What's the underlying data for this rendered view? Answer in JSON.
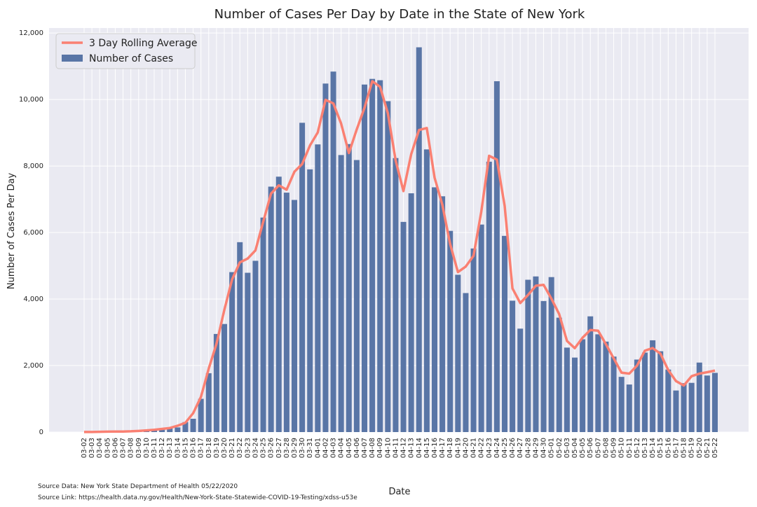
{
  "chart_data": {
    "type": "bar",
    "title": "Number of Cases Per Day by Date in the State of New York",
    "x_label": "Date",
    "y_label": "Number of Cases Per Day",
    "source_data": "Source Data: New York State Department of Health 05/22/2020",
    "source_link": "Source Link: https://health.data.ny.gov/Health/New-York-State-Statewide-COVID-19-Testing/xdss-u53e",
    "categories": [
      "03-02",
      "03-03",
      "03-04",
      "03-05",
      "03-06",
      "03-07",
      "03-08",
      "03-09",
      "03-10",
      "03-11",
      "03-12",
      "03-13",
      "03-14",
      "03-15",
      "03-16",
      "03-17",
      "03-18",
      "03-19",
      "03-20",
      "03-21",
      "03-22",
      "03-23",
      "03-24",
      "03-25",
      "03-26",
      "03-27",
      "03-28",
      "03-29",
      "03-30",
      "03-31",
      "04-01",
      "04-02",
      "04-03",
      "04-04",
      "04-05",
      "04-06",
      "04-07",
      "04-08",
      "04-09",
      "04-10",
      "04-11",
      "04-12",
      "04-13",
      "04-14",
      "04-15",
      "04-16",
      "04-17",
      "04-18",
      "04-19",
      "04-20",
      "04-21",
      "04-22",
      "04-23",
      "04-24",
      "04-25",
      "04-26",
      "04-27",
      "04-28",
      "04-29",
      "04-30",
      "05-01",
      "05-02",
      "05-03",
      "05-04",
      "05-05",
      "05-06",
      "05-07",
      "05-08",
      "05-09",
      "05-10",
      "05-11",
      "05-12",
      "05-13",
      "05-14",
      "05-15",
      "05-16",
      "05-17",
      "05-18",
      "05-19",
      "05-20",
      "05-21",
      "05-22"
    ],
    "series": [
      {
        "name": "3 Day Rolling Average",
        "type": "line",
        "color": "#fa8072",
        "values": [
          3,
          3,
          7,
          14,
          15,
          17,
          23,
          35,
          50,
          68,
          95,
          122,
          190,
          280,
          567,
          1057,
          1907,
          2657,
          3670,
          4590,
          5103,
          5217,
          5463,
          6327,
          7170,
          7420,
          7287,
          7827,
          8060,
          8617,
          9010,
          9990,
          9883,
          9277,
          8390,
          9097,
          9750,
          10550,
          10383,
          9590,
          8170,
          7247,
          8357,
          9083,
          9143,
          7650,
          6833,
          5653,
          4810,
          4977,
          5300,
          6630,
          8307,
          8193,
          6800,
          4320,
          3880,
          4123,
          4400,
          4427,
          4013,
          3547,
          2740,
          2523,
          2837,
          3070,
          3047,
          2643,
          2217,
          1787,
          1757,
          2000,
          2447,
          2527,
          2357,
          1867,
          1533,
          1400,
          1680,
          1757,
          1800,
          1850
        ]
      },
      {
        "name": "Number of Cases",
        "type": "bar",
        "color": "#5975a6",
        "values": [
          1,
          0,
          9,
          11,
          22,
          12,
          16,
          40,
          50,
          60,
          95,
          130,
          140,
          300,
          400,
          1000,
          1770,
          2950,
          3250,
          4810,
          5710,
          4790,
          5150,
          6450,
          7380,
          7680,
          7200,
          6980,
          9300,
          7900,
          8650,
          10480,
          10840,
          8330,
          8660,
          8180,
          10450,
          10620,
          10580,
          9950,
          8240,
          6320,
          7180,
          11570,
          8500,
          7360,
          7090,
          6050,
          4730,
          4180,
          5520,
          6240,
          8130,
          10550,
          5900,
          3950,
          3110,
          4580,
          4680,
          3940,
          4660,
          3440,
          2540,
          2240,
          2790,
          3480,
          2940,
          2720,
          2270,
          1660,
          1430,
          2180,
          2390,
          2760,
          2430,
          1880,
          1250,
          1470,
          1480,
          2090,
          1700,
          1780
        ]
      }
    ],
    "ylim": [
      0,
      12150
    ],
    "yticks": [
      0,
      {
        "value": 2000,
        "label": "2,000"
      },
      {
        "value": 4000,
        "label": "4,000"
      },
      {
        "value": 6000,
        "label": "6,000"
      },
      {
        "value": 8000,
        "label": "8,000"
      },
      {
        "value": 10000,
        "label": "10,000"
      },
      {
        "value": 12000,
        "label": "12,000"
      }
    ],
    "grid": true,
    "legend": "upper-left"
  }
}
